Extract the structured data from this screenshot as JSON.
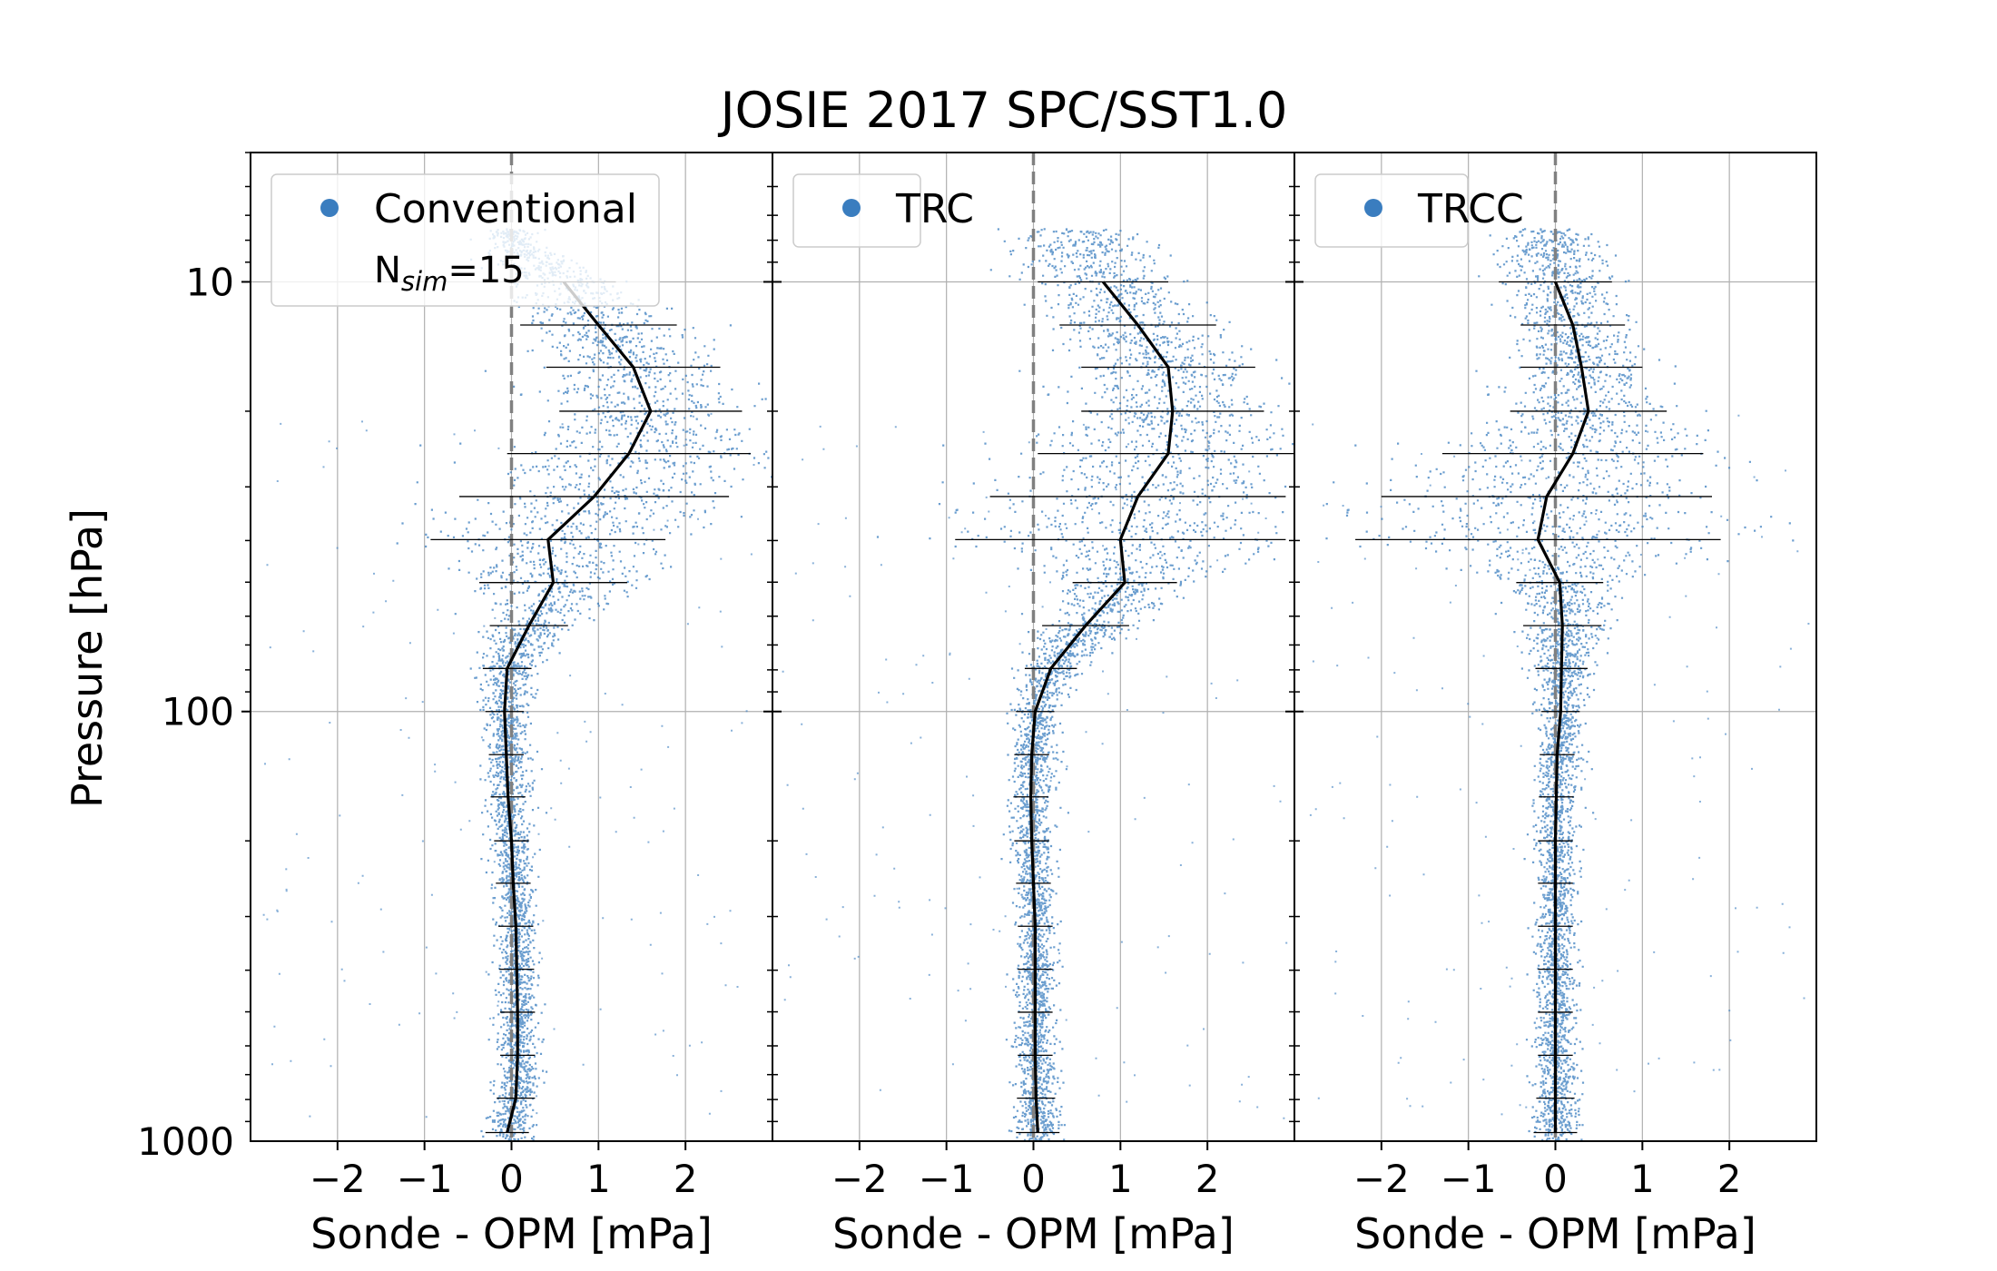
{
  "figure": {
    "title": "JOSIE 2017 SPC/SST1.0",
    "ylabel": "Pressure [hPa]"
  },
  "colors": {
    "scatter": "#3a7dbf",
    "mean_line": "#000000",
    "zero_line": "#808080",
    "grid": "#b0b0b0"
  },
  "chart_data": [
    {
      "type": "scatter",
      "legend": {
        "label": "Conventional",
        "note_prefix": "N",
        "note_sub": "sim",
        "note_suffix": "=15",
        "placement": "top-left"
      },
      "xlabel": "Sonde - OPM [mPa]",
      "ylabel": "Pressure [hPa]",
      "y_scale": "log",
      "y_inverted": true,
      "xlim": [
        -3,
        3
      ],
      "ylim": [
        1000,
        5
      ],
      "x_ticks": [
        "−2",
        "−1",
        "0",
        "1",
        "2"
      ],
      "y_ticks": [
        "10",
        "100",
        "1000"
      ],
      "grid": true,
      "series": [
        {
          "points": [
            {
              "p": 8.0,
              "x": 0.0
            },
            {
              "p": 10.0,
              "x": 0.6
            },
            {
              "p": 12.6,
              "x": 1.0
            },
            {
              "p": 15.8,
              "x": 1.4
            },
            {
              "p": 20.0,
              "x": 1.6
            },
            {
              "p": 25.1,
              "x": 1.35
            },
            {
              "p": 31.6,
              "x": 0.95
            },
            {
              "p": 39.8,
              "x": 0.42
            },
            {
              "p": 50.1,
              "x": 0.48
            },
            {
              "p": 63.1,
              "x": 0.2
            },
            {
              "p": 79.4,
              "x": -0.05
            },
            {
              "p": 100,
              "x": -0.08
            },
            {
              "p": 126,
              "x": -0.06
            },
            {
              "p": 158,
              "x": -0.04
            },
            {
              "p": 200,
              "x": 0.0
            },
            {
              "p": 251,
              "x": 0.02
            },
            {
              "p": 316,
              "x": 0.05
            },
            {
              "p": 398,
              "x": 0.06
            },
            {
              "p": 501,
              "x": 0.07
            },
            {
              "p": 631,
              "x": 0.07
            },
            {
              "p": 794,
              "x": 0.05
            },
            {
              "p": 955,
              "x": -0.05
            }
          ],
          "spread": [
            0.25,
            0.6,
            0.9,
            1.0,
            1.05,
            1.4,
            1.55,
            1.35,
            0.85,
            0.45,
            0.28,
            0.22,
            0.2,
            0.2,
            0.2,
            0.2,
            0.2,
            0.2,
            0.2,
            0.2,
            0.22,
            0.25
          ]
        }
      ]
    },
    {
      "type": "scatter",
      "legend": {
        "label": "TRC",
        "placement": "top-left"
      },
      "xlabel": "Sonde - OPM [mPa]",
      "y_scale": "log",
      "y_inverted": true,
      "xlim": [
        -3,
        3
      ],
      "ylim": [
        1000,
        5
      ],
      "x_ticks": [
        "−2",
        "−1",
        "0",
        "1",
        "2"
      ],
      "grid": true,
      "series": [
        {
          "points": [
            {
              "p": 8.0,
              "x": 0.55
            },
            {
              "p": 10.0,
              "x": 0.8
            },
            {
              "p": 12.6,
              "x": 1.2
            },
            {
              "p": 15.8,
              "x": 1.55
            },
            {
              "p": 20.0,
              "x": 1.6
            },
            {
              "p": 25.1,
              "x": 1.55
            },
            {
              "p": 31.6,
              "x": 1.2
            },
            {
              "p": 39.8,
              "x": 1.0
            },
            {
              "p": 50.1,
              "x": 1.05
            },
            {
              "p": 63.1,
              "x": 0.6
            },
            {
              "p": 79.4,
              "x": 0.2
            },
            {
              "p": 100,
              "x": 0.02
            },
            {
              "p": 126,
              "x": -0.02
            },
            {
              "p": 158,
              "x": -0.03
            },
            {
              "p": 200,
              "x": -0.02
            },
            {
              "p": 251,
              "x": 0.0
            },
            {
              "p": 316,
              "x": 0.02
            },
            {
              "p": 398,
              "x": 0.02
            },
            {
              "p": 501,
              "x": 0.02
            },
            {
              "p": 631,
              "x": 0.02
            },
            {
              "p": 794,
              "x": 0.03
            },
            {
              "p": 955,
              "x": 0.05
            }
          ],
          "spread": [
            0.7,
            0.75,
            0.9,
            1.0,
            1.05,
            1.5,
            1.7,
            1.9,
            0.6,
            0.5,
            0.3,
            0.22,
            0.2,
            0.2,
            0.2,
            0.2,
            0.2,
            0.2,
            0.2,
            0.2,
            0.22,
            0.25
          ]
        }
      ]
    },
    {
      "type": "scatter",
      "legend": {
        "label": "TRCC",
        "placement": "top-left"
      },
      "xlabel": "Sonde - OPM [mPa]",
      "y_scale": "log",
      "y_inverted": true,
      "xlim": [
        -3,
        3
      ],
      "ylim": [
        1000,
        5
      ],
      "x_ticks": [
        "−2",
        "−1",
        "0",
        "1",
        "2"
      ],
      "grid": true,
      "series": [
        {
          "points": [
            {
              "p": 8.0,
              "x": -0.05
            },
            {
              "p": 10.0,
              "x": 0.0
            },
            {
              "p": 12.6,
              "x": 0.2
            },
            {
              "p": 15.8,
              "x": 0.3
            },
            {
              "p": 20.0,
              "x": 0.38
            },
            {
              "p": 25.1,
              "x": 0.2
            },
            {
              "p": 31.6,
              "x": -0.1
            },
            {
              "p": 39.8,
              "x": -0.2
            },
            {
              "p": 50.1,
              "x": 0.05
            },
            {
              "p": 63.1,
              "x": 0.08
            },
            {
              "p": 79.4,
              "x": 0.07
            },
            {
              "p": 100,
              "x": 0.06
            },
            {
              "p": 126,
              "x": 0.02
            },
            {
              "p": 158,
              "x": 0.01
            },
            {
              "p": 200,
              "x": 0.0
            },
            {
              "p": 251,
              "x": 0.0
            },
            {
              "p": 316,
              "x": 0.0
            },
            {
              "p": 398,
              "x": 0.0
            },
            {
              "p": 501,
              "x": 0.0
            },
            {
              "p": 631,
              "x": 0.0
            },
            {
              "p": 794,
              "x": 0.0
            },
            {
              "p": 955,
              "x": 0.0
            }
          ],
          "spread": [
            0.5,
            0.65,
            0.6,
            0.7,
            0.9,
            1.5,
            1.9,
            2.1,
            0.5,
            0.45,
            0.3,
            0.22,
            0.2,
            0.2,
            0.2,
            0.2,
            0.2,
            0.2,
            0.2,
            0.2,
            0.22,
            0.25
          ]
        }
      ]
    }
  ]
}
